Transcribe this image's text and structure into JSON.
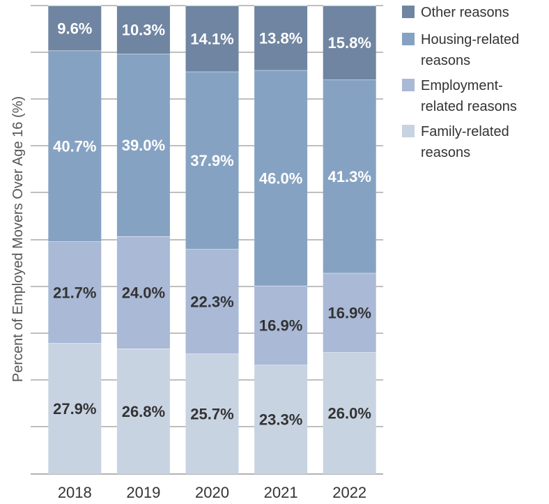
{
  "chart_data": {
    "type": "bar",
    "stacked": true,
    "orientation": "vertical",
    "title": "",
    "xlabel": "",
    "ylabel": "Percent of Employed Movers Over Age 16 (%)",
    "ylim": [
      0,
      100
    ],
    "grid": false,
    "legend": "top-right",
    "categories": [
      "2018",
      "2019",
      "2020",
      "2021",
      "2022"
    ],
    "series": [
      {
        "name": "Family-related reasons",
        "color": "#c8d3e2",
        "label_color": "#333333",
        "values": [
          27.9,
          26.8,
          25.7,
          23.3,
          26.0
        ],
        "labels": [
          "27.9%",
          "26.8%",
          "25.7%",
          "23.3%",
          "26.0%"
        ]
      },
      {
        "name": "Employment-related reasons",
        "color": "#a9b9d6",
        "label_color": "#333333",
        "values": [
          21.7,
          24.0,
          22.3,
          16.9,
          16.9
        ],
        "labels": [
          "21.7%",
          "24.0%",
          "22.3%",
          "16.9%",
          "16.9%"
        ]
      },
      {
        "name": "Housing-related reasons",
        "color": "#86a2c2",
        "label_color": "#ffffff",
        "values": [
          40.7,
          39.0,
          37.9,
          46.0,
          41.3
        ],
        "labels": [
          "40.7%",
          "39.0%",
          "37.9%",
          "46.0%",
          "41.3%"
        ]
      },
      {
        "name": "Other reasons",
        "color": "#6f85a1",
        "label_color": "#ffffff",
        "values": [
          9.6,
          10.3,
          14.1,
          13.8,
          15.8
        ],
        "labels": [
          "9.6%",
          "10.3%",
          "14.1%",
          "13.8%",
          "15.8%"
        ]
      }
    ],
    "legend_items": [
      {
        "lines": [
          "Other reasons"
        ],
        "color": "#6f85a1"
      },
      {
        "lines": [
          "Housing-related",
          "reasons"
        ],
        "color": "#86a2c2"
      },
      {
        "lines": [
          "Employment-",
          "related reasons"
        ],
        "color": "#a9b9d6"
      },
      {
        "lines": [
          "Family-related",
          "reasons"
        ],
        "color": "#c8d3e2"
      }
    ],
    "axis_color": "#999999"
  }
}
